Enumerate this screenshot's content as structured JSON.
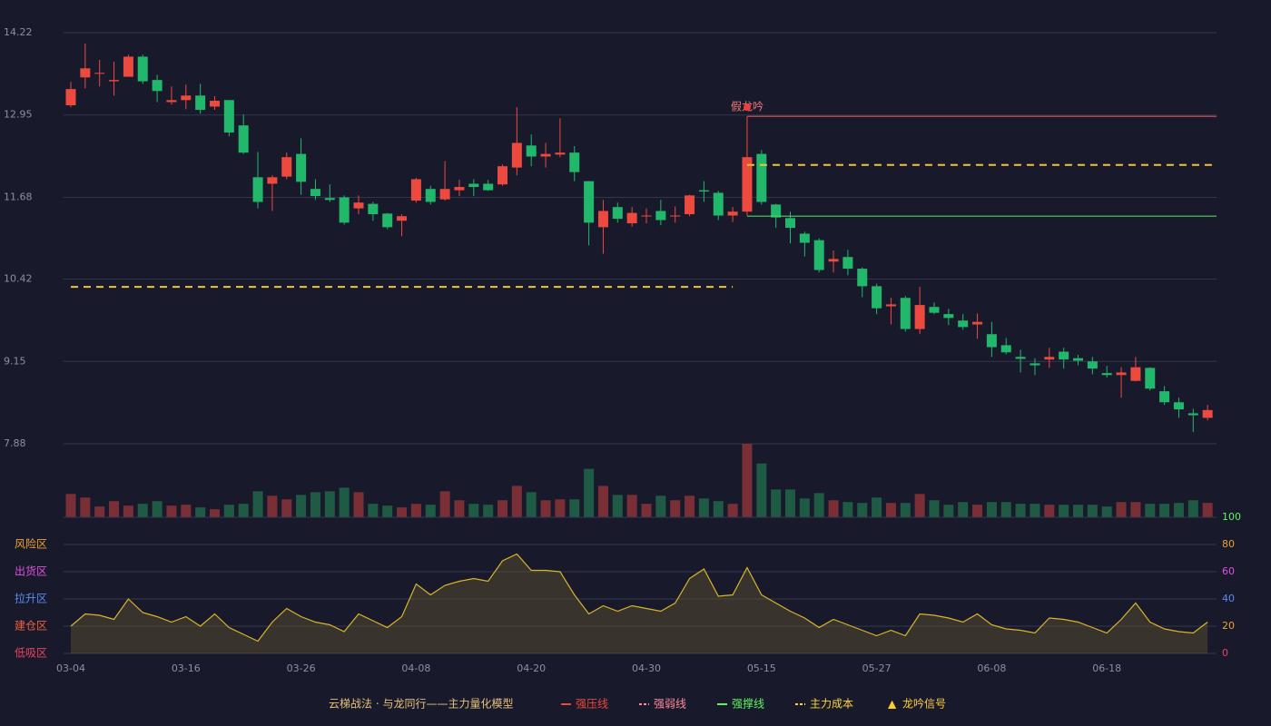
{
  "chart_data": [
    {
      "type": "candlestick",
      "ylim": [
        7.88,
        14.22
      ],
      "yticks": [
        7.88,
        9.15,
        10.42,
        11.68,
        12.95,
        14.22
      ],
      "grid": true,
      "up_color": "#ec4a3f",
      "down_color": "#22b86b",
      "open": [
        13.1,
        13.53,
        13.59,
        13.47,
        13.54,
        13.85,
        13.49,
        13.15,
        13.18,
        13.25,
        13.08,
        13.18,
        12.79,
        11.99,
        11.89,
        12.0,
        12.35,
        11.81,
        11.67,
        11.68,
        11.51,
        11.58,
        11.43,
        11.32,
        11.63,
        11.81,
        11.65,
        11.79,
        11.89,
        11.89,
        11.88,
        12.14,
        12.48,
        12.31,
        12.34,
        12.37,
        11.93,
        11.22,
        11.53,
        11.28,
        11.39,
        11.47,
        11.39,
        11.42,
        11.79,
        11.75,
        11.4,
        11.46,
        12.35,
        11.57,
        11.36,
        11.12,
        11.02,
        10.69,
        10.76,
        10.58,
        10.31,
        10.0,
        10.13,
        9.65,
        9.99,
        9.88,
        9.78,
        9.72,
        9.57,
        9.4,
        9.22,
        9.12,
        9.18,
        9.3,
        9.2,
        9.15,
        8.97,
        8.94,
        8.85,
        9.05,
        8.69,
        8.52,
        8.35,
        8.28
      ],
      "high": [
        13.46,
        14.05,
        13.8,
        13.77,
        13.88,
        13.88,
        13.57,
        13.39,
        13.42,
        13.43,
        13.24,
        13.18,
        12.96,
        12.38,
        12.02,
        12.37,
        12.59,
        11.96,
        11.88,
        11.71,
        11.71,
        11.61,
        11.44,
        11.42,
        11.98,
        11.86,
        12.24,
        11.95,
        11.96,
        11.95,
        12.19,
        13.07,
        12.65,
        12.52,
        12.9,
        12.47,
        11.93,
        11.64,
        11.6,
        11.53,
        11.51,
        11.64,
        11.54,
        11.72,
        11.93,
        11.78,
        11.53,
        12.93,
        12.41,
        11.58,
        11.46,
        11.15,
        11.05,
        10.86,
        10.87,
        10.6,
        10.35,
        10.13,
        10.16,
        10.3,
        10.06,
        9.96,
        9.88,
        9.89,
        9.76,
        9.51,
        9.33,
        9.2,
        9.36,
        9.36,
        9.25,
        9.22,
        9.08,
        9.06,
        9.22,
        9.06,
        8.77,
        8.59,
        8.42,
        8.48
      ],
      "low": [
        13.07,
        13.36,
        13.39,
        13.25,
        13.54,
        13.43,
        13.15,
        13.11,
        13.04,
        12.97,
        13.03,
        12.62,
        12.35,
        11.51,
        11.47,
        11.96,
        11.72,
        11.64,
        11.61,
        11.26,
        11.42,
        11.32,
        11.19,
        11.08,
        11.6,
        11.57,
        11.63,
        11.7,
        11.7,
        11.78,
        11.86,
        12.02,
        12.16,
        12.14,
        12.3,
        11.93,
        10.94,
        10.81,
        11.29,
        11.23,
        11.28,
        11.25,
        11.29,
        11.39,
        11.61,
        11.33,
        11.3,
        11.4,
        11.57,
        11.21,
        10.97,
        10.77,
        10.52,
        10.52,
        10.48,
        10.14,
        9.88,
        9.72,
        9.61,
        9.57,
        9.88,
        9.71,
        9.64,
        9.5,
        9.22,
        9.26,
        8.98,
        8.94,
        9.05,
        9.04,
        9.09,
        8.95,
        8.9,
        8.59,
        8.84,
        8.7,
        8.48,
        8.28,
        8.06,
        8.24
      ],
      "close": [
        13.35,
        13.67,
        13.6,
        13.49,
        13.85,
        13.47,
        13.32,
        13.18,
        13.25,
        13.03,
        13.17,
        12.68,
        12.37,
        11.61,
        11.99,
        12.3,
        11.92,
        11.7,
        11.64,
        11.29,
        11.6,
        11.42,
        11.22,
        11.39,
        11.96,
        11.61,
        11.81,
        11.84,
        11.84,
        11.79,
        12.16,
        12.52,
        12.31,
        12.35,
        12.37,
        12.07,
        11.29,
        11.47,
        11.35,
        11.44,
        11.4,
        11.33,
        11.4,
        11.71,
        11.77,
        11.4,
        11.46,
        12.3,
        11.61,
        11.37,
        11.21,
        10.98,
        10.56,
        10.73,
        10.58,
        10.31,
        9.97,
        10.03,
        9.65,
        10.02,
        9.9,
        9.82,
        9.68,
        9.76,
        9.37,
        9.29,
        9.19,
        9.09,
        9.22,
        9.18,
        9.16,
        9.04,
        8.94,
        8.98,
        9.06,
        8.73,
        8.52,
        8.41,
        8.32,
        8.4
      ],
      "lines": [
        {
          "value": 12.93,
          "start": 47,
          "end": 79,
          "color": "#e8505a",
          "style": "solid"
        },
        {
          "value": 12.18,
          "start": 47,
          "end": 79,
          "color": "#f2c432",
          "style": "dashed"
        },
        {
          "value": 11.39,
          "start": 47,
          "end": 79,
          "color": "#4fd65a",
          "style": "solid"
        },
        {
          "value": 10.3,
          "start": 0,
          "end": 46,
          "color": "#f2c432",
          "style": "dashed"
        }
      ],
      "annotations": [
        {
          "text": "假龙吟",
          "index": 47,
          "value": 13.07,
          "color": "#f07a7a"
        }
      ],
      "legend": {
        "title": "云梯战法 · 与龙同行——主力量化模型",
        "title_color": "#e6c27a",
        "items": [
          {
            "name": "强压线",
            "color": "#f0463c",
            "style": "solid"
          },
          {
            "name": "强弱线",
            "color": "#ff8a9a",
            "style": "dashed"
          },
          {
            "name": "强撑线",
            "color": "#5ef55e",
            "style": "solid"
          },
          {
            "name": "主力成本",
            "color": "#ffd23c",
            "style": "dashed"
          },
          {
            "name": "龙吟信号",
            "color": "#ffcc33",
            "marker": "▲"
          }
        ]
      }
    },
    {
      "type": "bar",
      "up_color": "#7a2f36",
      "down_color": "#1f5a44",
      "values": [
        26,
        22,
        12,
        18,
        13,
        15,
        18,
        13,
        14,
        11,
        9,
        14,
        15,
        29,
        24,
        20,
        25,
        28,
        29,
        33,
        28,
        15,
        13,
        11,
        15,
        14,
        29,
        19,
        15,
        14,
        19,
        35,
        28,
        19,
        20,
        20,
        54,
        35,
        25,
        25,
        15,
        24,
        19,
        24,
        21,
        18,
        15,
        82,
        60,
        31,
        31,
        21,
        27,
        19,
        17,
        16,
        22,
        16,
        16,
        26,
        19,
        14,
        17,
        14,
        17,
        17,
        15,
        15,
        14,
        14,
        14,
        14,
        12,
        17,
        17,
        15,
        15,
        16,
        19,
        16
      ]
    },
    {
      "type": "area",
      "categories": [
        "03-04",
        null,
        null,
        null,
        null,
        null,
        null,
        null,
        "03-16",
        null,
        null,
        null,
        null,
        null,
        null,
        null,
        "03-26",
        null,
        null,
        null,
        null,
        null,
        null,
        null,
        "04-08",
        null,
        null,
        null,
        null,
        null,
        null,
        null,
        "04-20",
        null,
        null,
        null,
        null,
        null,
        null,
        null,
        "04-30",
        null,
        null,
        null,
        null,
        null,
        null,
        null,
        "05-15",
        null,
        null,
        null,
        null,
        null,
        null,
        null,
        "05-27",
        null,
        null,
        null,
        null,
        null,
        null,
        null,
        "06-08",
        null,
        null,
        null,
        null,
        null,
        null,
        null,
        "06-18",
        null,
        null,
        null,
        null,
        null,
        null,
        null
      ],
      "values": [
        20,
        29,
        28,
        25,
        40,
        30,
        27,
        23,
        27,
        20,
        29,
        19,
        14,
        9,
        23,
        33,
        27,
        23,
        21,
        16,
        29,
        24,
        19,
        27,
        51,
        43,
        50,
        53,
        55,
        53,
        68,
        73,
        61,
        61,
        60,
        43,
        29,
        35,
        31,
        35,
        33,
        31,
        37,
        55,
        62,
        42,
        43,
        63,
        43,
        37,
        31,
        26,
        19,
        25,
        21,
        17,
        13,
        17,
        13,
        29,
        28,
        26,
        23,
        29,
        21,
        18,
        17,
        15,
        26,
        25,
        23,
        19,
        15,
        25,
        37,
        23,
        18,
        16,
        15,
        23
      ],
      "color": "#d9b52a",
      "fill": "rgba(120,100,50,0.35)",
      "ylim": [
        0,
        100
      ],
      "yticks": [
        0,
        20,
        40,
        60,
        80,
        100
      ],
      "ytick_colors": [
        "#e8455a",
        "#f0a030",
        "#5a8cf0",
        "#e050e0",
        "#f0a030",
        "#5ef55e"
      ],
      "zones": [
        {
          "value": 80,
          "label": "风险区",
          "color": "#f0a030"
        },
        {
          "value": 60,
          "label": "出货区",
          "color": "#e050e0"
        },
        {
          "value": 40,
          "label": "拉升区",
          "color": "#5a8cf0"
        },
        {
          "value": 20,
          "label": "建仓区",
          "color": "#f06040"
        },
        {
          "value": 0,
          "label": "低吸区",
          "color": "#e8455a"
        }
      ]
    }
  ]
}
